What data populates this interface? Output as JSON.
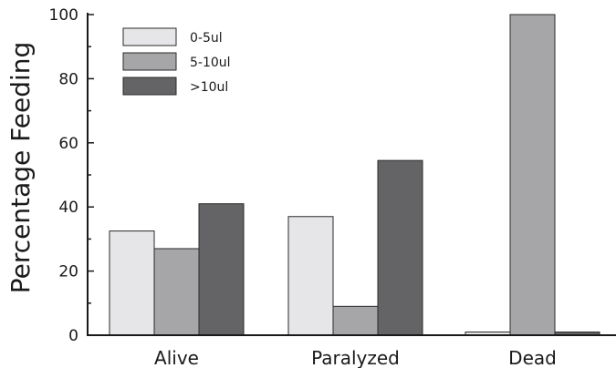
{
  "chart_data": {
    "type": "bar",
    "title": "",
    "xlabel": "",
    "ylabel": "Percentage Feeding",
    "categories": [
      "Alive",
      "Paralyzed",
      "Dead"
    ],
    "series": [
      {
        "name": "0-5ul",
        "color": "#e6e6e8",
        "values": [
          32.5,
          37,
          1
        ]
      },
      {
        "name": "5-10ul",
        "color": "#a6a6a9",
        "values": [
          27,
          9,
          100
        ]
      },
      {
        "name": ">10ul",
        "color": "#646466",
        "values": [
          41,
          54.5,
          1
        ]
      }
    ],
    "ylim": [
      0,
      100
    ],
    "yticks": [
      0,
      20,
      40,
      60,
      80,
      100
    ],
    "minor_ticks": [
      10,
      30,
      50,
      70,
      90
    ],
    "grid": false,
    "legend_position": "top-left"
  }
}
